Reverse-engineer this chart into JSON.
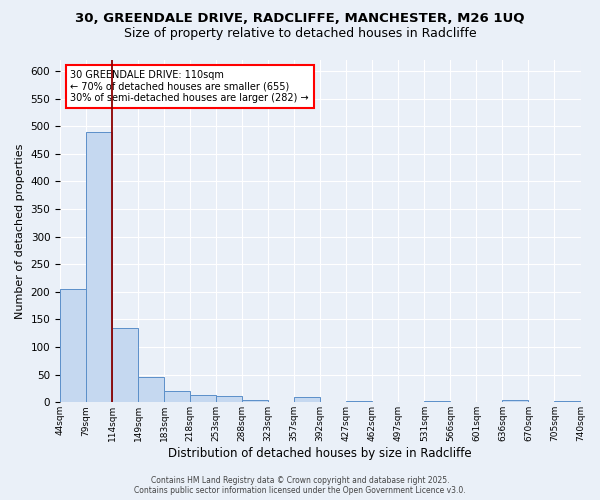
{
  "title_line1": "30, GREENDALE DRIVE, RADCLIFFE, MANCHESTER, M26 1UQ",
  "title_line2": "Size of property relative to detached houses in Radcliffe",
  "xlabel": "Distribution of detached houses by size in Radcliffe",
  "ylabel": "Number of detached properties",
  "bar_values": [
    205,
    490,
    135,
    45,
    21,
    14,
    12,
    4,
    0,
    9,
    0,
    3,
    0,
    0,
    3,
    0,
    0,
    4,
    0,
    3
  ],
  "bar_labels": [
    "44sqm",
    "79sqm",
    "114sqm",
    "149sqm",
    "183sqm",
    "218sqm",
    "253sqm",
    "288sqm",
    "323sqm",
    "357sqm",
    "392sqm",
    "427sqm",
    "462sqm",
    "497sqm",
    "531sqm",
    "566sqm",
    "601sqm",
    "636sqm",
    "670sqm",
    "705sqm"
  ],
  "bar_color": "#c5d8f0",
  "bar_edge_color": "#5b8fc9",
  "background_color": "#eaf0f8",
  "grid_color": "#ffffff",
  "annotation_text": "30 GREENDALE DRIVE: 110sqm\n← 70% of detached houses are smaller (655)\n30% of semi-detached houses are larger (282) →",
  "annotation_box_color": "white",
  "annotation_box_edge_color": "red",
  "vline_color": "#8b0000",
  "footer_line1": "Contains HM Land Registry data © Crown copyright and database right 2025.",
  "footer_line2": "Contains public sector information licensed under the Open Government Licence v3.0.",
  "ylim": [
    0,
    620
  ],
  "yticks": [
    0,
    50,
    100,
    150,
    200,
    250,
    300,
    350,
    400,
    450,
    500,
    550,
    600
  ],
  "extra_label": "740sqm"
}
